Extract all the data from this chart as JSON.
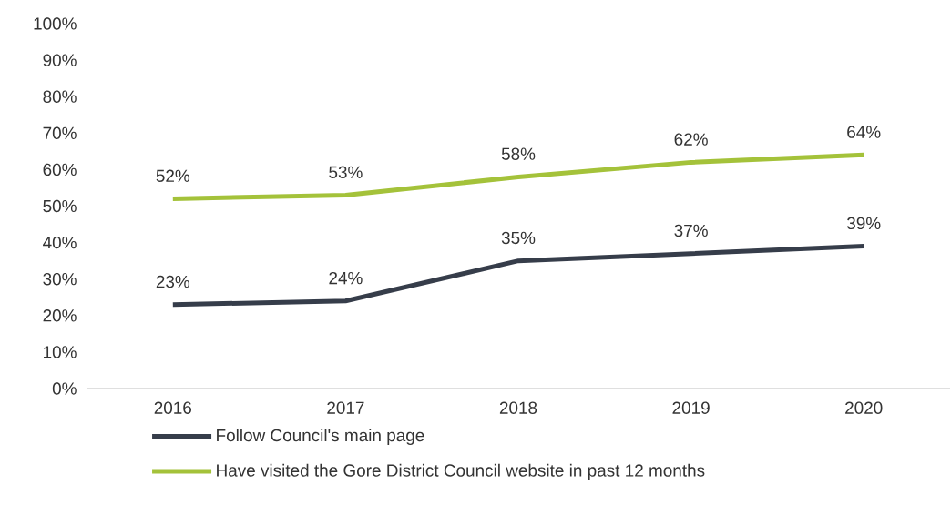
{
  "chart_data": {
    "type": "line",
    "categories": [
      "2016",
      "2017",
      "2018",
      "2019",
      "2020"
    ],
    "series": [
      {
        "name": "Follow Council's main page",
        "color": "#363d4a",
        "values": [
          23,
          24,
          35,
          37,
          39
        ],
        "value_labels": [
          "23%",
          "24%",
          "35%",
          "37%",
          "39%"
        ]
      },
      {
        "name": "Have visited the Gore District Council website in past 12 months",
        "color": "#a4c23a",
        "values": [
          52,
          53,
          58,
          62,
          64
        ],
        "value_labels": [
          "52%",
          "53%",
          "58%",
          "62%",
          "64%"
        ]
      }
    ],
    "ylim": [
      0,
      100
    ],
    "yticks": [
      {
        "value": 0,
        "label": "0%"
      },
      {
        "value": 10,
        "label": "10%"
      },
      {
        "value": 20,
        "label": "20%"
      },
      {
        "value": 30,
        "label": "30%"
      },
      {
        "value": 40,
        "label": "40%"
      },
      {
        "value": 50,
        "label": "50%"
      },
      {
        "value": 60,
        "label": "60%"
      },
      {
        "value": 70,
        "label": "70%"
      },
      {
        "value": 80,
        "label": "80%"
      },
      {
        "value": 90,
        "label": "90%"
      },
      {
        "value": 100,
        "label": "100%"
      }
    ],
    "grid": false,
    "legend": "bottom"
  }
}
